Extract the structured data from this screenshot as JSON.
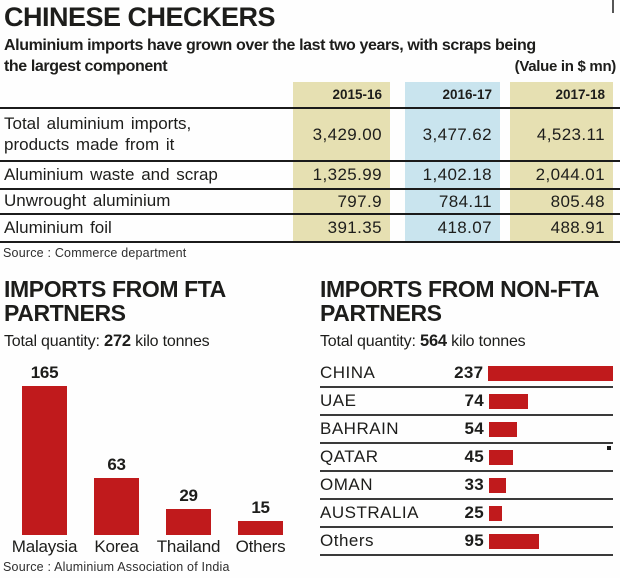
{
  "colors": {
    "accent_red": "#c01a1c",
    "column_tan": "#e6e0b2",
    "column_blue": "#c9e4ee",
    "line_dark": "#1b1b1b"
  },
  "header": {
    "title": "CHINESE CHECKERS",
    "subtitle_line1": "Aluminium imports have grown over the last two years, with scraps being",
    "subtitle_line2": "the largest component",
    "value_note": "(Value in $ mn)"
  },
  "table": {
    "columns": [
      "2015-16",
      "2016-17",
      "2017-18"
    ],
    "rows": [
      {
        "label": "Total aluminium imports, products made from it",
        "values": [
          "3,429.00",
          "3,477.62",
          "4,523.11"
        ]
      },
      {
        "label": "Aluminium waste and scrap",
        "values": [
          "1,325.99",
          "1,402.18",
          "2,044.01"
        ]
      },
      {
        "label": "Unwrought aluminium",
        "values": [
          "797.9",
          "784.11",
          "805.48"
        ]
      },
      {
        "label": "Aluminium foil",
        "values": [
          "391.35",
          "418.07",
          "488.91"
        ]
      }
    ],
    "source": "Source : Commerce department"
  },
  "fta": {
    "title_line1": "IMPORTS FROM FTA",
    "title_line2": "PARTNERS",
    "total_prefix": "Total quantity: ",
    "total_value": "272",
    "total_suffix": " kilo tonnes",
    "bars": [
      {
        "label": "Malaysia",
        "value": "165"
      },
      {
        "label": "Korea",
        "value": "63"
      },
      {
        "label": "Thailand",
        "value": "29"
      },
      {
        "label": "Others",
        "value": "15"
      }
    ],
    "source": "Source : Aluminium Association of India"
  },
  "non_fta": {
    "title_line1": "IMPORTS FROM NON-FTA",
    "title_line2": "PARTNERS",
    "total_prefix": "Total quantity: ",
    "total_value": "564",
    "total_suffix": " kilo tonnes",
    "rows": [
      {
        "label": "CHINA",
        "value": "237"
      },
      {
        "label": "UAE",
        "value": "74"
      },
      {
        "label": "BAHRAIN",
        "value": "54"
      },
      {
        "label": "QATAR",
        "value": "45"
      },
      {
        "label": "OMAN",
        "value": "33"
      },
      {
        "label": "AUSTRALIA",
        "value": "25"
      },
      {
        "label": "Others",
        "value": "95"
      }
    ]
  },
  "chart_data": [
    {
      "type": "table",
      "title": "Aluminium imports, CHINESE CHECKERS (Value in $ mn)",
      "columns": [
        "2015-16",
        "2016-17",
        "2017-18"
      ],
      "rows": [
        {
          "label": "Total aluminium imports, products made from it",
          "values": [
            3429.0,
            3477.62,
            4523.11
          ]
        },
        {
          "label": "Aluminium waste and scrap",
          "values": [
            1325.99,
            1402.18,
            2044.01
          ]
        },
        {
          "label": "Unwrought aluminium",
          "values": [
            797.9,
            784.11,
            805.48
          ]
        },
        {
          "label": "Aluminium foil",
          "values": [
            391.35,
            418.07,
            488.91
          ]
        }
      ],
      "column_highlight_colors": [
        "#e6e0b2",
        "#c9e4ee",
        "#e6e0b2"
      ]
    },
    {
      "type": "bar",
      "orientation": "vertical",
      "title": "IMPORTS FROM FTA PARTNERS",
      "subtitle": "Total quantity: 272 kilo tonnes",
      "categories": [
        "Malaysia",
        "Korea",
        "Thailand",
        "Others"
      ],
      "values": [
        165,
        63,
        29,
        15
      ],
      "unit": "kilo tonnes",
      "total": 272,
      "bar_color": "#c01a1c",
      "data_labels": true,
      "grid": false
    },
    {
      "type": "bar",
      "orientation": "horizontal",
      "title": "IMPORTS FROM NON-FTA PARTNERS",
      "subtitle": "Total quantity: 564 kilo tonnes",
      "categories": [
        "CHINA",
        "UAE",
        "BAHRAIN",
        "QATAR",
        "OMAN",
        "AUSTRALIA",
        "Others"
      ],
      "values": [
        237,
        74,
        54,
        45,
        33,
        25,
        95
      ],
      "unit": "kilo tonnes",
      "total": 564,
      "bar_color": "#c01a1c",
      "data_labels": true,
      "grid": false
    }
  ]
}
